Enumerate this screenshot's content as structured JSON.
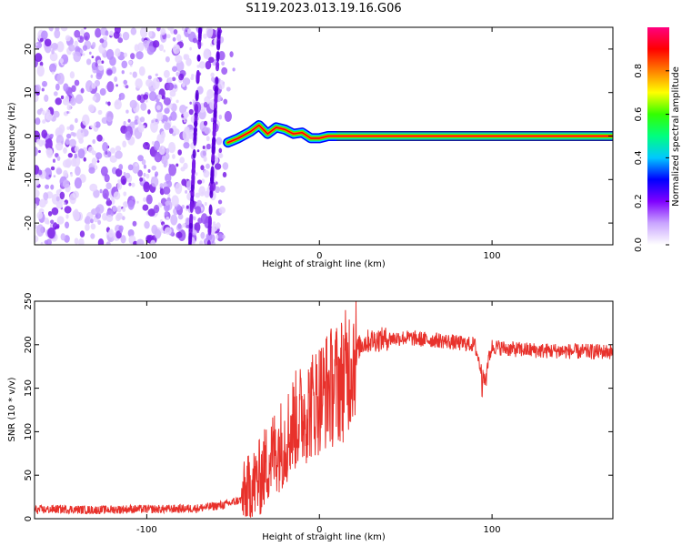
{
  "title": "S119.2023.013.19.16.G06",
  "colors": {
    "plot_line": "#e8312b",
    "axes": "#000000"
  },
  "chart_data": [
    {
      "type": "heatmap",
      "xlabel": "Height of straight line (km)",
      "ylabel": "Frequency (Hz)",
      "xlim": [
        -165,
        170
      ],
      "ylim": [
        -25,
        25
      ],
      "xticks": [
        -100,
        0,
        100
      ],
      "yticks": [
        -20,
        -10,
        0,
        10,
        20
      ],
      "colorbar": {
        "label": "Normalized spectral amplitude",
        "range": [
          0,
          1
        ],
        "ticks": [
          "0.0",
          "0.2",
          "0.4",
          "0.6",
          "0.8"
        ],
        "colors": [
          "#ffffff",
          "#c9a4ff",
          "#7f00ff",
          "#0000ff",
          "#00c8ff",
          "#00ff7f",
          "#33ff00",
          "#ffff00",
          "#ff7f00",
          "#ff0000",
          "#ff0080"
        ]
      },
      "noise_region_x": [
        -165,
        -55
      ],
      "signal_track": {
        "x": [
          -53,
          -47,
          -40,
          -35,
          -30,
          -25,
          -20,
          -15,
          -10,
          -5,
          0,
          5,
          10,
          30,
          60,
          88,
          120,
          170
        ],
        "y": [
          -1.5,
          -0.5,
          1.0,
          2.5,
          0.5,
          2.0,
          1.5,
          0.5,
          0.8,
          -0.5,
          -0.5,
          0,
          0,
          0,
          0,
          0,
          0,
          0
        ]
      }
    },
    {
      "type": "line",
      "xlabel": "Height of straight line (km)",
      "ylabel": "SNR (10 * v/v)",
      "xlim": [
        -165,
        170
      ],
      "ylim": [
        0,
        250
      ],
      "xticks": [
        -100,
        0,
        100
      ],
      "yticks": [
        0,
        50,
        100,
        150,
        200,
        250
      ],
      "series": [
        {
          "x": [
            -165,
            -150,
            -130,
            -110,
            -90,
            -70,
            -55,
            -45,
            -40,
            -35,
            -30,
            -25,
            -20,
            -15,
            -10,
            -5,
            0,
            5,
            10,
            15,
            20,
            25,
            30,
            40,
            50,
            60,
            70,
            80,
            90,
            95,
            100,
            110,
            120,
            130,
            140,
            150,
            160,
            170
          ],
          "y": [
            10,
            11,
            10,
            11,
            11,
            12,
            16,
            22,
            35,
            45,
            65,
            80,
            90,
            110,
            120,
            130,
            140,
            150,
            155,
            165,
            190,
            202,
            205,
            207,
            208,
            206,
            205,
            202,
            200,
            160,
            198,
            195,
            194,
            193,
            193,
            192,
            192,
            192
          ]
        }
      ]
    }
  ]
}
